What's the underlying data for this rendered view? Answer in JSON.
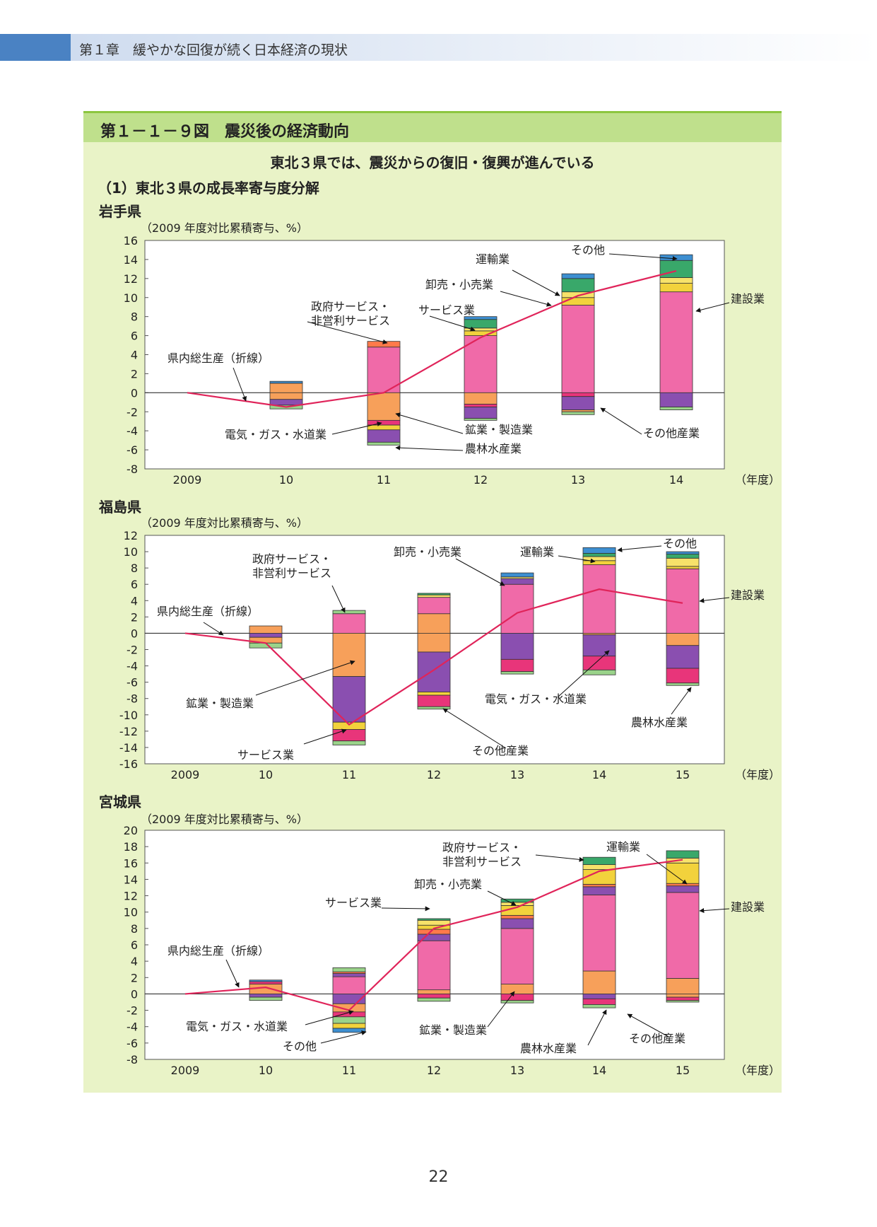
{
  "chapter": {
    "title": "第１章　緩やかな回復が続く日本経済の現状"
  },
  "figure": {
    "title": "第１－１－９図　震災後の経済動向",
    "subtitle": "東北３県では、震災からの復旧・復興が進んでいる",
    "section": "（1）東北３県の成長率寄与度分解"
  },
  "colors": {
    "panel_bg": "#e9f3c7",
    "header_bg": "#bfe08c",
    "construction": "#f06aa8",
    "manufacturing": "#f7a05a",
    "other_industry": "#8a4fb0",
    "agriculture": "#9ad38a",
    "utilities": "#e8357a",
    "services": "#f2d23c",
    "government": "#ff7a4a",
    "wholesale": "#f7e26a",
    "transport": "#39a86a",
    "other": "#3d8fd1",
    "line": "#e0245a"
  },
  "chart_data": [
    {
      "type": "bar",
      "title": "岩手県",
      "unit_label": "（2009 年度対比累積寄与、%）",
      "categories": [
        "2009",
        "10",
        "11",
        "12",
        "13",
        "14"
      ],
      "x_unit": "（年度）",
      "ylim": [
        -8,
        16
      ],
      "yticks": [
        16,
        14,
        12,
        10,
        8,
        6,
        4,
        2,
        0,
        -2,
        -4,
        -6,
        -8
      ],
      "line": {
        "name": "県内総生産（折線）",
        "values": [
          0,
          -1.5,
          0,
          5.8,
          10.2,
          12.8
        ]
      },
      "positive": [
        [],
        [
          [
            "manufacturing",
            1.0
          ],
          [
            "other",
            0.2
          ]
        ],
        [
          [
            "construction",
            4.8
          ],
          [
            "government",
            0.6
          ]
        ],
        [
          [
            "construction",
            6.0
          ],
          [
            "services",
            0.5
          ],
          [
            "wholesale",
            0.3
          ],
          [
            "transport",
            0.9
          ],
          [
            "other",
            0.3
          ]
        ],
        [
          [
            "construction",
            9.2
          ],
          [
            "services",
            0.8
          ],
          [
            "wholesale",
            0.6
          ],
          [
            "transport",
            1.4
          ],
          [
            "other",
            0.5
          ]
        ],
        [
          [
            "construction",
            10.6
          ],
          [
            "services",
            0.9
          ],
          [
            "wholesale",
            0.6
          ],
          [
            "transport",
            1.8
          ],
          [
            "other",
            0.6
          ]
        ]
      ],
      "negative": [
        [],
        [
          [
            "manufacturing",
            -0.7
          ],
          [
            "other_industry",
            -0.6
          ],
          [
            "agriculture",
            -0.4
          ]
        ],
        [
          [
            "manufacturing",
            -2.9
          ],
          [
            "utilities",
            -0.5
          ],
          [
            "services",
            -0.5
          ],
          [
            "other_industry",
            -1.3
          ],
          [
            "agriculture",
            -0.3
          ]
        ],
        [
          [
            "manufacturing",
            -1.2
          ],
          [
            "utilities",
            -0.3
          ],
          [
            "other_industry",
            -1.2
          ],
          [
            "agriculture",
            -0.2
          ]
        ],
        [
          [
            "utilities",
            -0.4
          ],
          [
            "other_industry",
            -1.4
          ],
          [
            "manufacturing",
            -0.2
          ],
          [
            "agriculture",
            -0.3
          ]
        ],
        [
          [
            "other_industry",
            -1.5
          ],
          [
            "agriculture",
            -0.3
          ]
        ]
      ],
      "annotations": [
        {
          "text": "政府サービス・",
          "text2": "非営利サービス"
        },
        {
          "text": "サービス業"
        },
        {
          "text": "卸売・小売業"
        },
        {
          "text": "運輸業"
        },
        {
          "text": "その他"
        },
        {
          "text": "建設業"
        },
        {
          "text": "県内総生産（折線）"
        },
        {
          "text": "電気・ガス・水道業"
        },
        {
          "text": "鉱業・製造業"
        },
        {
          "text": "農林水産業"
        },
        {
          "text": "その他産業"
        }
      ]
    },
    {
      "type": "bar",
      "title": "福島県",
      "unit_label": "（2009 年度対比累積寄与、%）",
      "categories": [
        "2009",
        "10",
        "11",
        "12",
        "13",
        "14",
        "15"
      ],
      "x_unit": "（年度）",
      "ylim": [
        -16,
        12
      ],
      "yticks": [
        12,
        10,
        8,
        6,
        4,
        2,
        0,
        -2,
        -4,
        -6,
        -8,
        -10,
        -12,
        -14,
        -16
      ],
      "line": {
        "name": "県内総生産（折線）",
        "values": [
          0,
          -1.2,
          -11.2,
          -4.5,
          2.5,
          5.4,
          3.7
        ]
      },
      "positive": [
        [],
        [
          [
            "manufacturing",
            0.9
          ]
        ],
        [
          [
            "construction",
            2.4
          ],
          [
            "agriculture",
            0.4
          ]
        ],
        [
          [
            "manufacturing",
            2.4
          ],
          [
            "construction",
            2.0
          ],
          [
            "wholesale",
            0.3
          ],
          [
            "transport",
            0.2
          ]
        ],
        [
          [
            "construction",
            6.0
          ],
          [
            "other_industry",
            0.7
          ],
          [
            "wholesale",
            0.2
          ],
          [
            "other",
            0.5
          ]
        ],
        [
          [
            "construction",
            8.4
          ],
          [
            "services",
            0.5
          ],
          [
            "wholesale",
            0.5
          ],
          [
            "transport",
            0.4
          ],
          [
            "other",
            0.7
          ]
        ],
        [
          [
            "construction",
            7.9
          ],
          [
            "services",
            0.3
          ],
          [
            "wholesale",
            1.0
          ],
          [
            "transport",
            0.5
          ],
          [
            "other",
            0.3
          ]
        ]
      ],
      "negative": [
        [],
        [
          [
            "other_industry",
            -0.5
          ],
          [
            "manufacturing",
            -0.7
          ],
          [
            "agriculture",
            -0.6
          ]
        ],
        [
          [
            "manufacturing",
            -5.3
          ],
          [
            "other_industry",
            -5.6
          ],
          [
            "services",
            -0.9
          ],
          [
            "utilities",
            -1.4
          ],
          [
            "agriculture",
            -0.5
          ]
        ],
        [
          [
            "manufacturing",
            -2.3
          ],
          [
            "other_industry",
            -4.9
          ],
          [
            "services",
            -0.4
          ],
          [
            "utilities",
            -1.4
          ],
          [
            "agriculture",
            -0.3
          ]
        ],
        [
          [
            "other_industry",
            -3.2
          ],
          [
            "utilities",
            -1.5
          ],
          [
            "agriculture",
            -0.3
          ]
        ],
        [
          [
            "manufacturing",
            -0.2
          ],
          [
            "other_industry",
            -2.6
          ],
          [
            "utilities",
            -1.7
          ],
          [
            "agriculture",
            -0.6
          ]
        ],
        [
          [
            "manufacturing",
            -1.5
          ],
          [
            "other_industry",
            -2.8
          ],
          [
            "utilities",
            -1.8
          ],
          [
            "agriculture",
            -0.3
          ]
        ]
      ],
      "annotations": [
        {
          "text": "政府サービス・",
          "text2": "非営利サービス"
        },
        {
          "text": "卸売・小売業"
        },
        {
          "text": "運輸業"
        },
        {
          "text": "その他"
        },
        {
          "text": "建設業"
        },
        {
          "text": "県内総生産（折線）"
        },
        {
          "text": "鉱業・製造業"
        },
        {
          "text": "サービス業"
        },
        {
          "text": "その他産業"
        },
        {
          "text": "電気・ガス・水道業"
        },
        {
          "text": "農林水産業"
        }
      ]
    },
    {
      "type": "bar",
      "title": "宮城県",
      "unit_label": "（2009 年度対比累積寄与、%）",
      "categories": [
        "2009",
        "10",
        "11",
        "12",
        "13",
        "14",
        "15"
      ],
      "x_unit": "（年度）",
      "ylim": [
        -8,
        20
      ],
      "yticks": [
        20,
        18,
        16,
        14,
        12,
        10,
        8,
        6,
        4,
        2,
        0,
        -2,
        -4,
        -6,
        -8
      ],
      "line": {
        "name": "県内総生産（折線）",
        "values": [
          0,
          0.8,
          -2.0,
          8.0,
          10.6,
          15.0,
          16.4
        ]
      },
      "positive": [
        [],
        [
          [
            "manufacturing",
            1.2
          ],
          [
            "utilities",
            0.3
          ],
          [
            "other",
            0.2
          ]
        ],
        [
          [
            "construction",
            2.1
          ],
          [
            "other_industry",
            0.4
          ],
          [
            "government",
            0.2
          ],
          [
            "agriculture",
            0.5
          ]
        ],
        [
          [
            "manufacturing",
            0.5
          ],
          [
            "construction",
            6.0
          ],
          [
            "other_industry",
            0.8
          ],
          [
            "government",
            0.6
          ],
          [
            "services",
            0.5
          ],
          [
            "wholesale",
            0.6
          ],
          [
            "transport",
            0.2
          ]
        ],
        [
          [
            "manufacturing",
            1.2
          ],
          [
            "construction",
            6.8
          ],
          [
            "other_industry",
            1.2
          ],
          [
            "government",
            0.4
          ],
          [
            "services",
            1.2
          ],
          [
            "wholesale",
            0.4
          ],
          [
            "transport",
            0.4
          ]
        ],
        [
          [
            "manufacturing",
            2.8
          ],
          [
            "construction",
            9.3
          ],
          [
            "other_industry",
            1.0
          ],
          [
            "government",
            0.3
          ],
          [
            "services",
            1.8
          ],
          [
            "wholesale",
            0.6
          ],
          [
            "transport",
            0.9
          ]
        ],
        [
          [
            "manufacturing",
            1.9
          ],
          [
            "construction",
            10.5
          ],
          [
            "other_industry",
            0.8
          ],
          [
            "government",
            0.3
          ],
          [
            "services",
            2.5
          ],
          [
            "wholesale",
            0.6
          ],
          [
            "transport",
            0.9
          ]
        ]
      ],
      "negative": [
        [],
        [
          [
            "other_industry",
            -0.4
          ],
          [
            "agriculture",
            -0.4
          ]
        ],
        [
          [
            "other_industry",
            -1.2
          ],
          [
            "manufacturing",
            -1.0
          ],
          [
            "utilities",
            -0.6
          ],
          [
            "agriculture",
            -0.8
          ],
          [
            "services",
            -0.6
          ],
          [
            "other",
            -0.5
          ]
        ],
        [
          [
            "utilities",
            -0.5
          ],
          [
            "agriculture",
            -0.4
          ]
        ],
        [
          [
            "utilities",
            -0.8
          ],
          [
            "agriculture",
            -0.3
          ]
        ],
        [
          [
            "other_industry",
            -0.6
          ],
          [
            "utilities",
            -0.7
          ],
          [
            "agriculture",
            -0.4
          ]
        ],
        [
          [
            "manufacturing",
            -0.4
          ],
          [
            "utilities",
            -0.4
          ],
          [
            "agriculture",
            -0.2
          ]
        ]
      ],
      "annotations": [
        {
          "text": "政府サービス・",
          "text2": "非営利サービス"
        },
        {
          "text": "運輸業"
        },
        {
          "text": "卸売・小売業"
        },
        {
          "text": "サービス業"
        },
        {
          "text": "建設業"
        },
        {
          "text": "県内総生産（折線）"
        },
        {
          "text": "電気・ガス・水道業"
        },
        {
          "text": "その他"
        },
        {
          "text": "鉱業・製造業"
        },
        {
          "text": "農林水産業"
        },
        {
          "text": "その他産業"
        }
      ]
    }
  ],
  "page": {
    "number": "22"
  }
}
